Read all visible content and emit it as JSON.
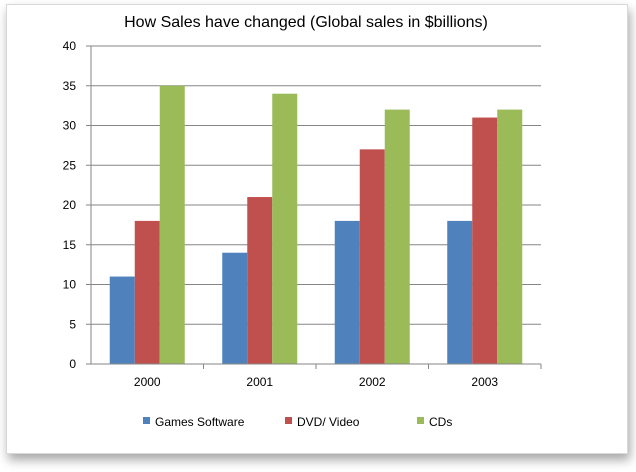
{
  "chart_data": {
    "type": "bar",
    "title": "How Sales have changed (Global sales in $billions)",
    "xlabel": "",
    "ylabel": "",
    "categories": [
      "2000",
      "2001",
      "2002",
      "2003"
    ],
    "series": [
      {
        "name": "Games Software",
        "color": "#4f81bd",
        "values": [
          11,
          14,
          18,
          18
        ]
      },
      {
        "name": "DVD/ Video",
        "color": "#c0504d",
        "values": [
          18,
          21,
          27,
          31
        ]
      },
      {
        "name": "CDs",
        "color": "#9bbb59",
        "values": [
          35,
          34,
          32,
          32
        ]
      }
    ],
    "ylim": [
      0,
      40
    ],
    "yticks": [
      "0",
      "5",
      "10",
      "15",
      "20",
      "25",
      "30",
      "35",
      "40"
    ],
    "grid": true,
    "legend": "bottom"
  }
}
